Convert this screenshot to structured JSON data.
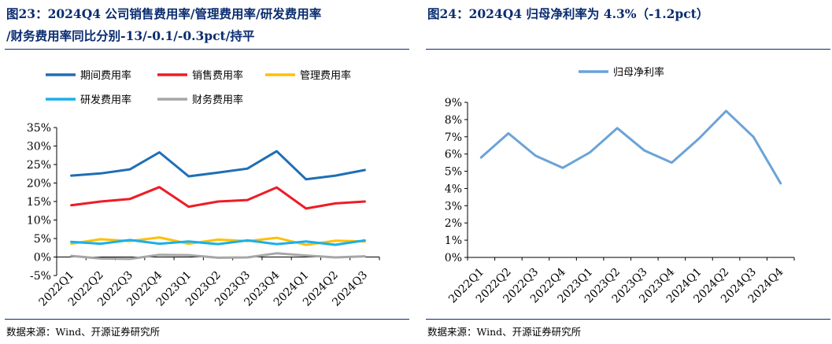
{
  "left": {
    "title_line1": "图23：2024Q4 公司销售费用率/管理费用率/研发费用率",
    "title_line2": "/财务费用率同比分别-13/-0.1/-0.3pct/持平",
    "source": "数据来源：Wind、开源证券研究所"
  },
  "right": {
    "title": "图24：2024Q4 归母净利率为 4.3%（-1.2pct）",
    "source": "数据来源：Wind、开源证券研究所"
  },
  "colors": {
    "title": "#0a2c70",
    "series_period": "#1f6eb5",
    "series_sales": "#ee1c25",
    "series_admin": "#ffc000",
    "series_rd": "#1ab0e8",
    "series_finance": "#a6a6a6",
    "series_net_margin": "#6aa3d8"
  },
  "chart_data": [
    {
      "type": "line",
      "x": [
        "2022Q1",
        "2022Q2",
        "2022Q3",
        "2022Q4",
        "2023Q1",
        "2023Q2",
        "2023Q3",
        "2023Q4",
        "2024Q1",
        "2024Q2",
        "2024Q3"
      ],
      "y_ticks": [
        "-5%",
        "0%",
        "5%",
        "10%",
        "15%",
        "20%",
        "25%",
        "30%",
        "35%"
      ],
      "ylim": [
        -5,
        35
      ],
      "y_unit": "%",
      "legend": "top",
      "grid": false,
      "series": [
        {
          "name": "期间费用率",
          "color": "#1f6eb5",
          "values": [
            22.0,
            22.6,
            23.7,
            28.3,
            21.8,
            22.8,
            23.9,
            28.6,
            21.0,
            22.0,
            23.5
          ]
        },
        {
          "name": "销售费用率",
          "color": "#ee1c25",
          "values": [
            14.0,
            15.0,
            15.7,
            18.9,
            13.6,
            15.0,
            15.4,
            18.8,
            13.1,
            14.5,
            15.0
          ]
        },
        {
          "name": "管理费用率",
          "color": "#ffc000",
          "values": [
            3.6,
            4.8,
            4.3,
            5.3,
            3.6,
            4.7,
            4.3,
            5.2,
            3.3,
            4.4,
            4.2
          ]
        },
        {
          "name": "研发费用率",
          "color": "#1ab0e8",
          "values": [
            4.1,
            3.6,
            4.6,
            3.6,
            4.2,
            3.5,
            4.5,
            3.5,
            4.2,
            3.3,
            4.5
          ]
        },
        {
          "name": "财务费用率",
          "color": "#a6a6a6",
          "values": [
            0.3,
            -0.4,
            -0.5,
            0.6,
            0.5,
            -0.2,
            -0.1,
            1.0,
            0.4,
            -0.1,
            0.2
          ]
        }
      ]
    },
    {
      "type": "line",
      "x": [
        "2022Q1",
        "2022Q2",
        "2022Q3",
        "2022Q4",
        "2023Q1",
        "2023Q2",
        "2023Q3",
        "2023Q4",
        "2024Q1",
        "2024Q2",
        "2024Q3",
        "2024Q4"
      ],
      "y_ticks": [
        "0%",
        "1%",
        "2%",
        "3%",
        "4%",
        "5%",
        "6%",
        "7%",
        "8%",
        "9%"
      ],
      "ylim": [
        0,
        9
      ],
      "y_unit": "%",
      "legend": "top",
      "grid": false,
      "series": [
        {
          "name": "归母净利率",
          "color": "#6aa3d8",
          "values": [
            5.8,
            7.2,
            5.9,
            5.2,
            6.1,
            7.5,
            6.2,
            5.5,
            6.9,
            8.5,
            7.0,
            4.3
          ]
        }
      ]
    }
  ]
}
